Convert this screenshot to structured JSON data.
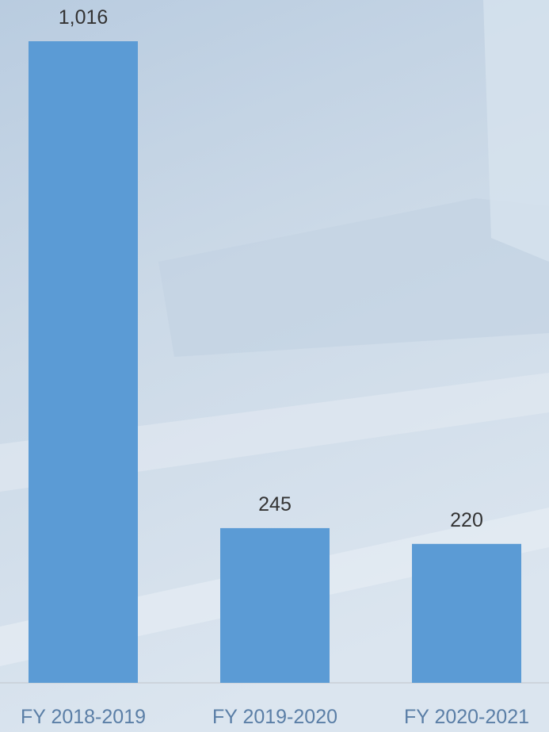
{
  "chart_data": {
    "type": "bar",
    "categories": [
      "FY 2018-2019",
      "FY 2019-2020",
      "FY 2020-2021"
    ],
    "values": [
      1016,
      245,
      220
    ],
    "value_labels": [
      "1,016",
      "245",
      "220"
    ],
    "color": "#5b9bd5"
  }
}
